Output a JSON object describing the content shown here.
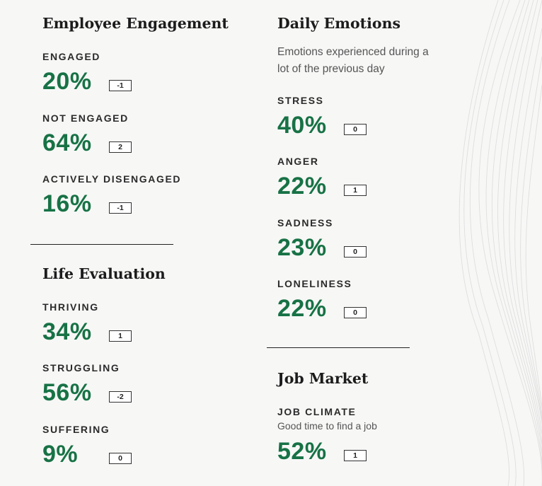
{
  "employee_engagement": {
    "title": "Employee Engagement",
    "metrics": [
      {
        "label": "ENGAGED",
        "value": "20%",
        "change": "-1"
      },
      {
        "label": "NOT ENGAGED",
        "value": "64%",
        "change": "2"
      },
      {
        "label": "ACTIVELY DISENGAGED",
        "value": "16%",
        "change": "-1"
      }
    ]
  },
  "life_evaluation": {
    "title": "Life Evaluation",
    "metrics": [
      {
        "label": "THRIVING",
        "value": "34%",
        "change": "1"
      },
      {
        "label": "STRUGGLING",
        "value": "56%",
        "change": "-2"
      },
      {
        "label": "SUFFERING",
        "value": "9%",
        "change": "0"
      }
    ]
  },
  "daily_emotions": {
    "title": "Daily Emotions",
    "subtitle": "Emotions experienced during a lot of the previous day",
    "metrics": [
      {
        "label": "STRESS",
        "value": "40%",
        "change": "0"
      },
      {
        "label": "ANGER",
        "value": "22%",
        "change": "1"
      },
      {
        "label": "SADNESS",
        "value": "23%",
        "change": "0"
      },
      {
        "label": "LONELINESS",
        "value": "22%",
        "change": "0"
      }
    ]
  },
  "job_market": {
    "title": "Job Market",
    "metrics": [
      {
        "label": "JOB CLIMATE",
        "sublabel": "Good time to find a job",
        "value": "52%",
        "change": "1"
      }
    ]
  },
  "colors": {
    "value_green": "#177245",
    "heading": "#1c1c1c",
    "background": "#f7f7f6"
  }
}
